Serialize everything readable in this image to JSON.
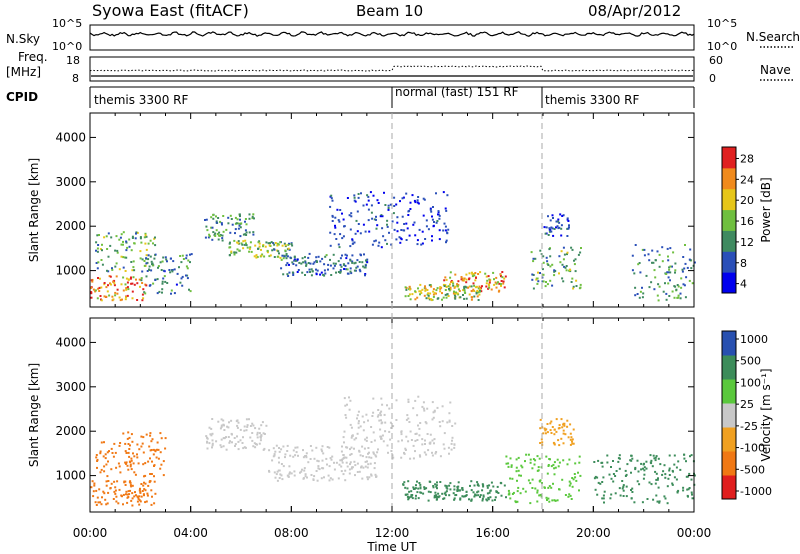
{
  "header": {
    "radar": "Syowa East (fitACF)",
    "beam": "Beam 10",
    "date": "08/Apr/2012"
  },
  "strips": {
    "nsky_label": "N.Sky",
    "nsearch_label": "N.Search",
    "freq_label_1": "Freq.",
    "freq_label_2": "[MHz]",
    "nave_label": "Nave",
    "cpid_label": "CPID",
    "nsky_ticks": [
      "10^5",
      "10^0"
    ],
    "nsky_right_ticks": [
      "10^5",
      "10^0"
    ],
    "freq_ticks": [
      "18",
      "8"
    ],
    "nave_ticks": [
      "60",
      "0"
    ],
    "cpid_segments": [
      {
        "label": "themis 3300 RF",
        "start": 0,
        "end": 12
      },
      {
        "label": "normal (fast) 151 RF",
        "start": 12,
        "end": 18
      },
      {
        "label": "themis 3300 RF",
        "start": 18,
        "end": 24
      }
    ]
  },
  "x_axis": {
    "label": "Time UT",
    "ticks": [
      "00:00",
      "04:00",
      "08:00",
      "12:00",
      "16:00",
      "20:00",
      "00:00"
    ],
    "range_hours": [
      0,
      24
    ]
  },
  "power_panel": {
    "ylabel": "Slant Range [km]",
    "yticks": [
      "4000",
      "3000",
      "2000",
      "1000"
    ],
    "colorbar_label": "Power [dB]",
    "colorbar_ticks": [
      "28",
      "24",
      "20",
      "16",
      "12",
      "8",
      "4"
    ],
    "colors": [
      "#0000ee",
      "#2a4fb8",
      "#3f8a60",
      "#6fbf3f",
      "#e6c619",
      "#f08a1c",
      "#e02020"
    ]
  },
  "velocity_panel": {
    "ylabel": "Slant Range [km]",
    "yticks": [
      "4000",
      "3000",
      "2000",
      "1000"
    ],
    "colorbar_label": "Velocity [m s⁻¹]",
    "colorbar_ticks": [
      "1000",
      "500",
      "100",
      "25",
      "-25",
      "-100",
      "-500",
      "-1000"
    ],
    "colors": [
      "#2850b0",
      "#3c8c5a",
      "#5ac83c",
      "#c8c8c8",
      "#f0a020",
      "#f07814",
      "#e01e1e"
    ]
  },
  "chart_data": [
    {
      "type": "heatmap",
      "title": "Power [dB]",
      "xlabel": "Time UT",
      "ylabel": "Slant Range [km]",
      "xlim": [
        0,
        24
      ],
      "ylim": [
        180,
        4550
      ],
      "clim": [
        0,
        32
      ],
      "bands": [
        {
          "t0": 0.0,
          "t1": 2.2,
          "r0": 350,
          "r1": 900,
          "value": 26
        },
        {
          "t0": 0.2,
          "t1": 2.6,
          "r0": 1000,
          "r1": 1900,
          "value": 14
        },
        {
          "t0": 2.0,
          "t1": 4.0,
          "r0": 500,
          "r1": 1400,
          "value": 10
        },
        {
          "t0": 4.5,
          "t1": 6.5,
          "r0": 1700,
          "r1": 2300,
          "value": 12
        },
        {
          "t0": 5.5,
          "t1": 8.0,
          "r0": 1300,
          "r1": 1700,
          "value": 15
        },
        {
          "t0": 7.5,
          "t1": 11.0,
          "r0": 900,
          "r1": 1400,
          "value": 9
        },
        {
          "t0": 9.5,
          "t1": 12.2,
          "r0": 1500,
          "r1": 2800,
          "value": 6
        },
        {
          "t0": 12.2,
          "t1": 14.2,
          "r0": 1600,
          "r1": 2800,
          "value": 5
        },
        {
          "t0": 14.0,
          "t1": 16.5,
          "r0": 550,
          "r1": 1000,
          "value": 24
        },
        {
          "t0": 12.5,
          "t1": 15.5,
          "r0": 350,
          "r1": 700,
          "value": 18
        },
        {
          "t0": 17.5,
          "t1": 19.5,
          "r0": 600,
          "r1": 1600,
          "value": 13
        },
        {
          "t0": 18.0,
          "t1": 19.0,
          "r0": 1800,
          "r1": 2300,
          "value": 6
        },
        {
          "t0": 21.5,
          "t1": 24.0,
          "r0": 350,
          "r1": 1600,
          "value": 11
        }
      ]
    },
    {
      "type": "heatmap",
      "title": "Velocity [m s⁻¹]",
      "xlabel": "Time UT",
      "ylabel": "Slant Range [km]",
      "xlim": [
        0,
        24
      ],
      "ylim": [
        180,
        4550
      ],
      "clim": [
        -1000,
        1000
      ],
      "bands": [
        {
          "t0": 0.0,
          "t1": 2.6,
          "r0": 350,
          "r1": 900,
          "value": -300
        },
        {
          "t0": 0.2,
          "t1": 3.0,
          "r0": 1000,
          "r1": 2000,
          "value": -150
        },
        {
          "t0": 4.5,
          "t1": 7.0,
          "r0": 1600,
          "r1": 2300,
          "value": 0
        },
        {
          "t0": 7.0,
          "t1": 11.5,
          "r0": 900,
          "r1": 1700,
          "value": 0
        },
        {
          "t0": 10.0,
          "t1": 14.5,
          "r0": 1400,
          "r1": 2800,
          "value": 0
        },
        {
          "t0": 12.3,
          "t1": 16.5,
          "r0": 450,
          "r1": 900,
          "value": 200
        },
        {
          "t0": 16.5,
          "t1": 19.5,
          "r0": 400,
          "r1": 1500,
          "value": 60
        },
        {
          "t0": 17.8,
          "t1": 19.2,
          "r0": 1700,
          "r1": 2300,
          "value": -40
        },
        {
          "t0": 20.0,
          "t1": 24.0,
          "r0": 400,
          "r1": 1500,
          "value": 150
        }
      ]
    }
  ]
}
